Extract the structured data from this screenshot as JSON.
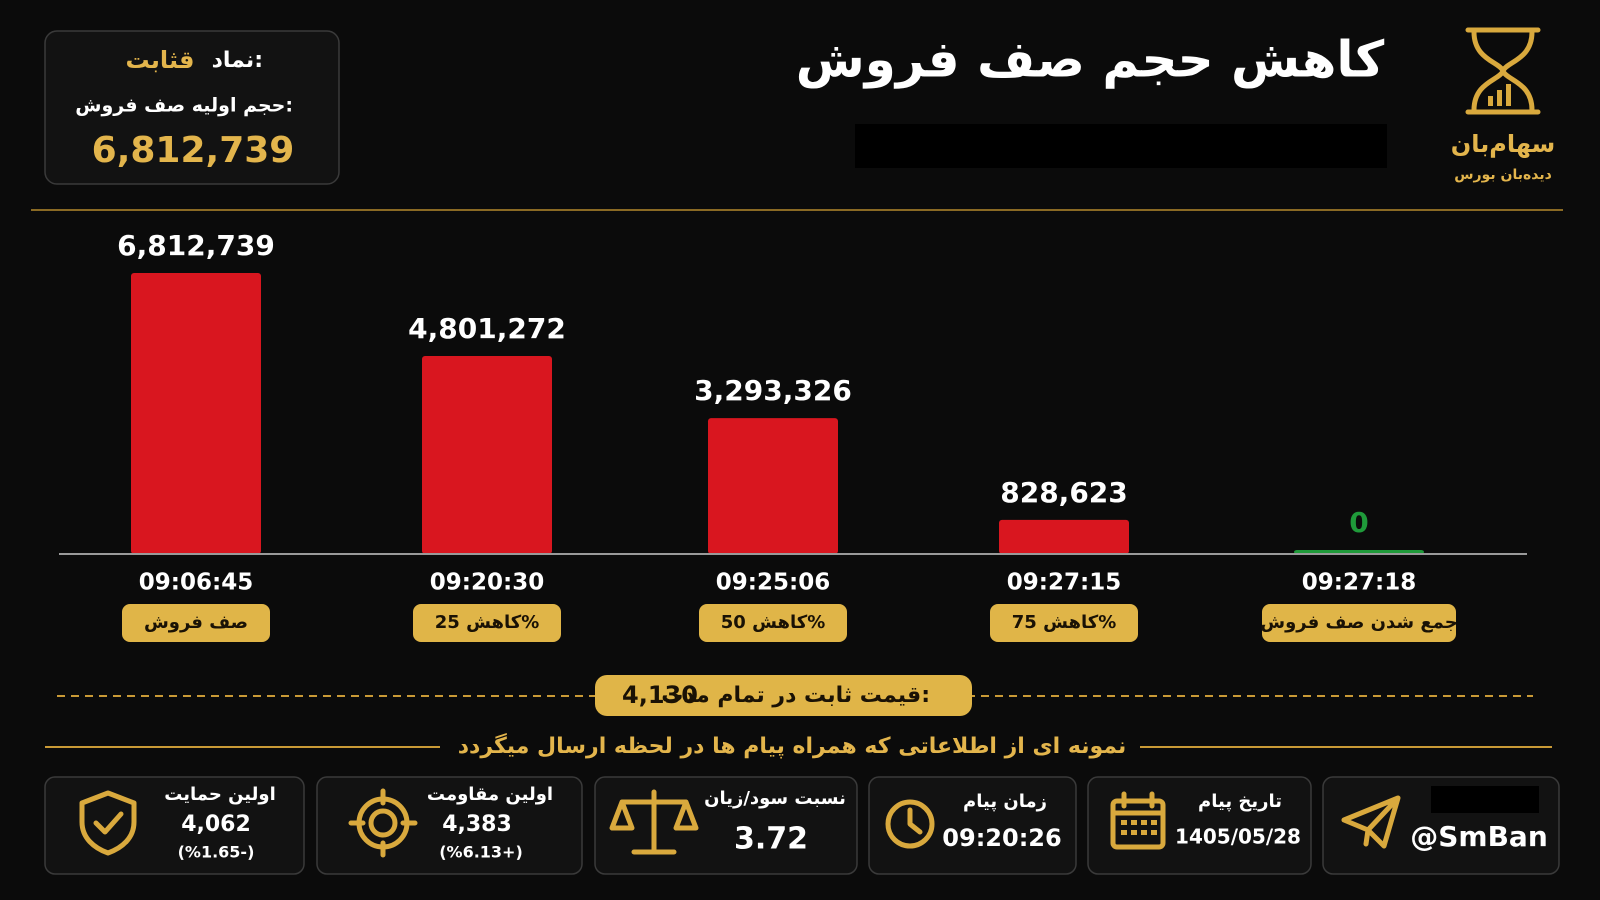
{
  "chart_data": {
    "type": "bar",
    "title": "کاهش حجم صف فروش",
    "categories": [
      "09:06:45",
      "09:20:30",
      "09:25:06",
      "09:27:15",
      "09:27:18"
    ],
    "stages": [
      "صف فروش",
      "کاهش 25%",
      "کاهش 50%",
      "کاهش 75%",
      "جمع شدن صف فروش"
    ],
    "values": [
      6812739,
      4801272,
      3293326,
      828623,
      0
    ],
    "value_labels": [
      "6,812,739",
      "4,801,272",
      "3,293,326",
      "828,623",
      "0"
    ],
    "colors": [
      "#d9161f",
      "#d9161f",
      "#d9161f",
      "#d9161f",
      "#1f9a3a"
    ]
  },
  "logo": {
    "name": "سهام‌بان",
    "tagline": "دیده‌بان بورس"
  },
  "symbol_box": {
    "symbol_label": "نماد:",
    "symbol": "قثابت",
    "initial_label": "حجم اولیه صف فروش:",
    "initial_value": "6,812,739"
  },
  "price_note": {
    "label": "قیمت ثابت در تمام مدت:",
    "value": "4,130"
  },
  "info_heading": "نمونه ای از اطلاعاتی که همراه پیام ها در لحظه ارسال میگردد",
  "cards": {
    "support": {
      "label": "اولین حمایت",
      "value": "4,062",
      "change": "(%1.65-)"
    },
    "resistance": {
      "label": "اولین مقاومت",
      "value": "4,383",
      "change": "(%6.13+)"
    },
    "ratio": {
      "label": "نسبت سود/زیان",
      "value": "3.72"
    },
    "time": {
      "label": "زمان پیام",
      "value": "09:20:26"
    },
    "date": {
      "label": "تاریخ پیام",
      "value": "1405/05/28"
    },
    "channel": {
      "value": "@SmBan"
    }
  }
}
